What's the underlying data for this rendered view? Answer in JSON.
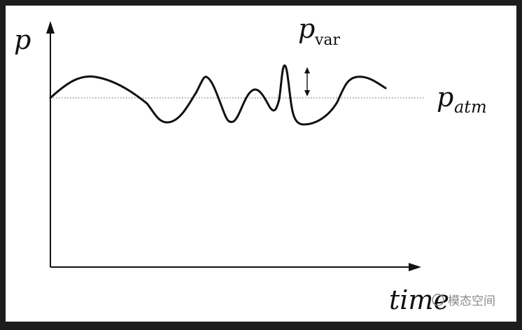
{
  "diagram": {
    "y_axis_label": "p",
    "x_axis_label": "time",
    "pvar_label_main": "p",
    "pvar_label_sub": "var",
    "patm_label_main": "p",
    "patm_label_sub": "atm",
    "watermark_text": "模态空间"
  },
  "colors": {
    "background_outer": "#1c1c1c",
    "panel": "#ffffff",
    "curve": "#111111",
    "baseline_dotted": "#7a7a7a",
    "watermark": "#8a8a8a"
  }
}
